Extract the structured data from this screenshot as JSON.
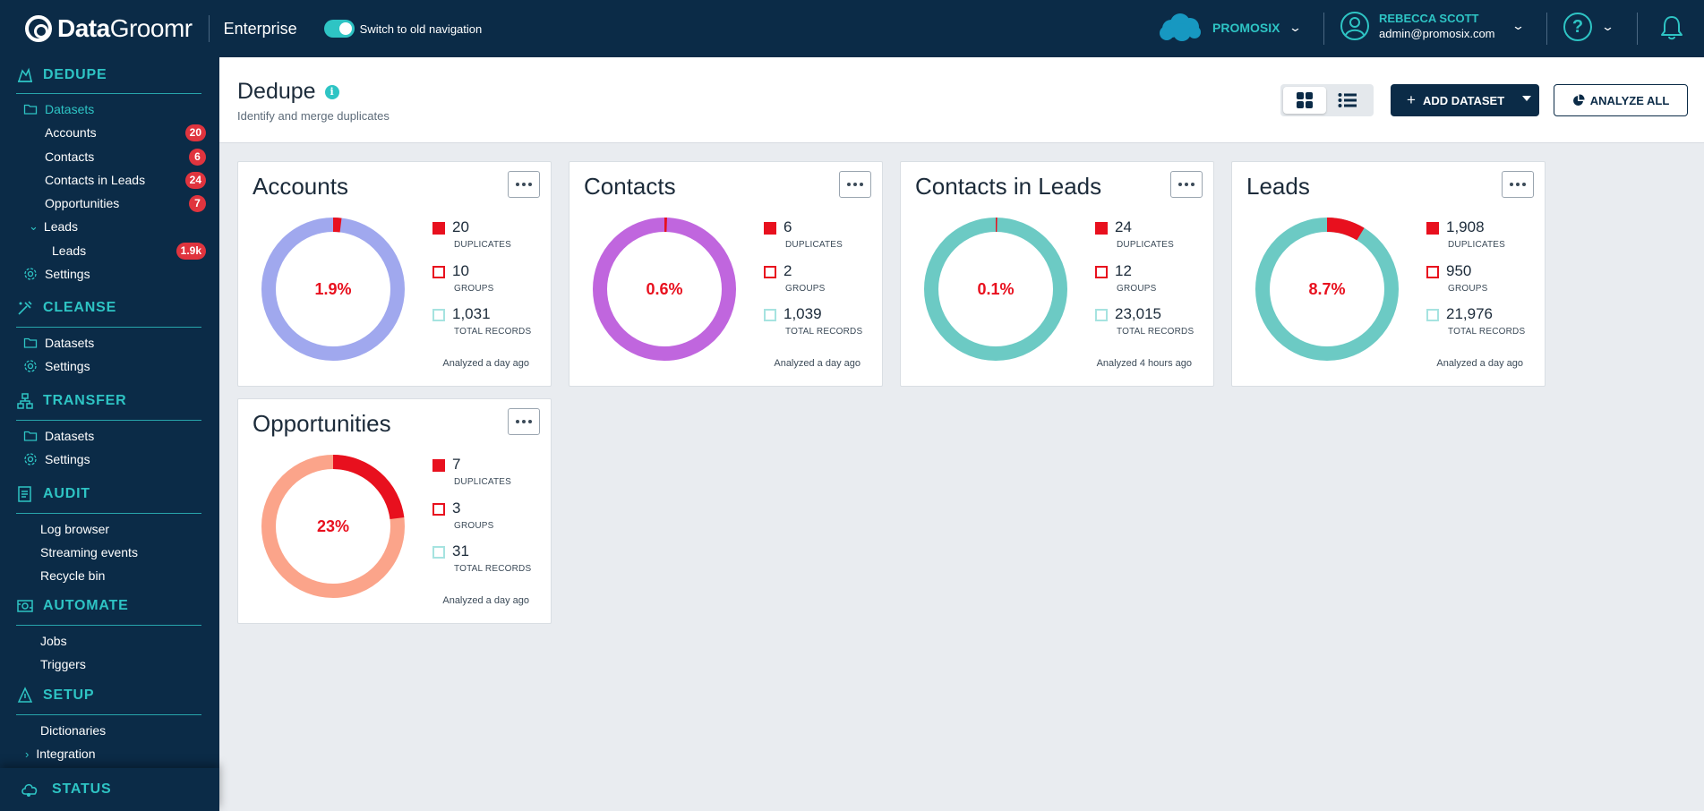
{
  "app": {
    "logo_bold": "Data",
    "logo_light": "Groomr",
    "edition": "Enterprise",
    "toggle_label": "Switch to old navigation",
    "org_name": "PROMOSIX",
    "user_name": "REBECCA SCOTT",
    "user_email": "admin@promosix.com",
    "help_glyph": "?"
  },
  "sidebar": {
    "dedupe": {
      "title": "DEDUPE",
      "datasets": "Datasets",
      "items": [
        {
          "label": "Accounts",
          "badge": "20"
        },
        {
          "label": "Contacts",
          "badge": "6"
        },
        {
          "label": "Contacts in Leads",
          "badge": "24"
        },
        {
          "label": "Opportunities",
          "badge": "7"
        }
      ],
      "leads_group": "Leads",
      "leads_item": {
        "label": "Leads",
        "badge": "1.9k"
      },
      "settings": "Settings"
    },
    "cleanse": {
      "title": "CLEANSE",
      "datasets": "Datasets",
      "settings": "Settings"
    },
    "transfer": {
      "title": "TRANSFER",
      "datasets": "Datasets",
      "settings": "Settings"
    },
    "audit": {
      "title": "AUDIT",
      "items": [
        "Log browser",
        "Streaming events",
        "Recycle bin"
      ]
    },
    "automate": {
      "title": "AUTOMATE",
      "items": [
        "Jobs",
        "Triggers"
      ]
    },
    "setup": {
      "title": "SETUP",
      "items": [
        "Dictionaries",
        "Integration"
      ]
    },
    "status": "STATUS"
  },
  "header": {
    "title": "Dedupe",
    "info_glyph": "i",
    "subtitle": "Identify and merge duplicates",
    "add_label": "ADD DATASET",
    "add_plus": "+",
    "analyze_label": "ANALYZE ALL"
  },
  "legend_labels": {
    "duplicates": "DUPLICATES",
    "groups": "GROUPS",
    "total": "TOTAL RECORDS"
  },
  "cards": [
    {
      "title": "Accounts",
      "pct": "1.9%",
      "fraction": 0.019,
      "color": "#a0a8ee",
      "duplicates": "20",
      "groups": "10",
      "total": "1,031",
      "analyzed": "Analyzed a day ago"
    },
    {
      "title": "Contacts",
      "pct": "0.6%",
      "fraction": 0.006,
      "color": "#c066de",
      "duplicates": "6",
      "groups": "2",
      "total": "1,039",
      "analyzed": "Analyzed a day ago"
    },
    {
      "title": "Contacts in Leads",
      "pct": "0.1%",
      "fraction": 0.001,
      "color": "#6ccac4",
      "duplicates": "24",
      "groups": "12",
      "total": "23,015",
      "analyzed": "Analyzed 4 hours ago"
    },
    {
      "title": "Leads",
      "pct": "8.7%",
      "fraction": 0.087,
      "color": "#6ccac4",
      "duplicates": "1,908",
      "groups": "950",
      "total": "21,976",
      "analyzed": "Analyzed a day ago"
    },
    {
      "title": "Opportunities",
      "pct": "23%",
      "fraction": 0.23,
      "color": "#fba48a",
      "duplicates": "7",
      "groups": "3",
      "total": "31",
      "analyzed": "Analyzed a day ago"
    }
  ],
  "colors": {
    "accent": "#2ec4c4",
    "navy": "#0b2b47",
    "duplicate": "#e8101e",
    "badge": "#e0343e"
  }
}
